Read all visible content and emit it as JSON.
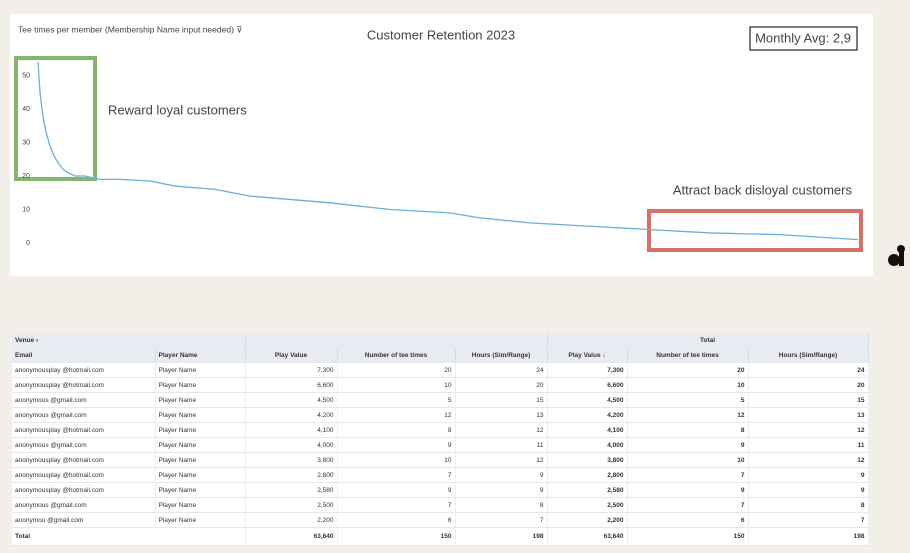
{
  "chart_data": {
    "type": "line",
    "title": "Customer Retention 2023",
    "subtitle": "Tee times per member (Membership Name input needed) ⊽",
    "annotations": [
      "Reward loyal customers",
      "Attract back disloyal customers",
      "Monthly Avg: 2,9"
    ],
    "x": [
      0,
      2,
      4,
      6,
      9,
      12,
      16,
      20,
      25,
      30,
      37,
      47,
      62,
      82,
      112,
      137,
      177,
      212,
      252,
      292,
      352,
      412,
      442,
      492,
      552,
      612,
      672,
      742,
      820
    ],
    "values": [
      54,
      45,
      40,
      36,
      32,
      29,
      26,
      24,
      22,
      21,
      20,
      20,
      19,
      19,
      18.5,
      17,
      16,
      14,
      13,
      12,
      10,
      9,
      7.5,
      6,
      5,
      4,
      3,
      2.5,
      1
    ],
    "xlim": [
      0,
      820
    ],
    "ylim": [
      0,
      60
    ],
    "yticks": [
      0,
      10,
      20,
      30,
      40,
      50
    ],
    "color": "#6aaedb",
    "grid": false
  },
  "table": {
    "group_headers": [
      "Venue ›",
      "Total"
    ],
    "columns": [
      "Email",
      "Player Name",
      "Play Value",
      "Number of tee times",
      "Hours (Sim/Range)",
      "Play Value ↓",
      "Number of tee times",
      "Hours (Sim/Range)"
    ],
    "rows": [
      [
        "anonymousplay @hotmail.com",
        "Player Name",
        "7,300",
        "20",
        "24",
        "7,300",
        "20",
        "24"
      ],
      [
        "anonymousplay @hotmail.com",
        "Player Name",
        "6,600",
        "10",
        "20",
        "6,600",
        "10",
        "20"
      ],
      [
        "anonymous @gmail.com",
        "Player Name",
        "4,500",
        "5",
        "15",
        "4,500",
        "5",
        "15"
      ],
      [
        "anonymous @gmail.com",
        "Player Name",
        "4,200",
        "12",
        "13",
        "4,200",
        "12",
        "13"
      ],
      [
        "anonymousplay @hotmail.com",
        "Player Name",
        "4,100",
        "8",
        "12",
        "4,100",
        "8",
        "12"
      ],
      [
        "anonymous @gmail.com",
        "Player Name",
        "4,000",
        "9",
        "11",
        "4,000",
        "9",
        "11"
      ],
      [
        "anonymousplay @hotmail.com",
        "Player Name",
        "3,800",
        "10",
        "12",
        "3,800",
        "10",
        "12"
      ],
      [
        "anonymousplay @hotmail.com",
        "Player Name",
        "2,800",
        "7",
        "9",
        "2,800",
        "7",
        "9"
      ],
      [
        "anonymousplay @hotmail.com",
        "Player Name",
        "2,580",
        "9",
        "9",
        "2,580",
        "9",
        "9"
      ],
      [
        "anonymous @gmail.com",
        "Player Name",
        "2,500",
        "7",
        "8",
        "2,500",
        "7",
        "8"
      ],
      [
        "anonymou @gmail.com",
        "Player Name",
        "2,200",
        "6",
        "7",
        "2,200",
        "6",
        "7"
      ]
    ],
    "total": {
      "label": "Total",
      "values": [
        "63,640",
        "150",
        "198",
        "63,640",
        "150",
        "198"
      ]
    }
  }
}
